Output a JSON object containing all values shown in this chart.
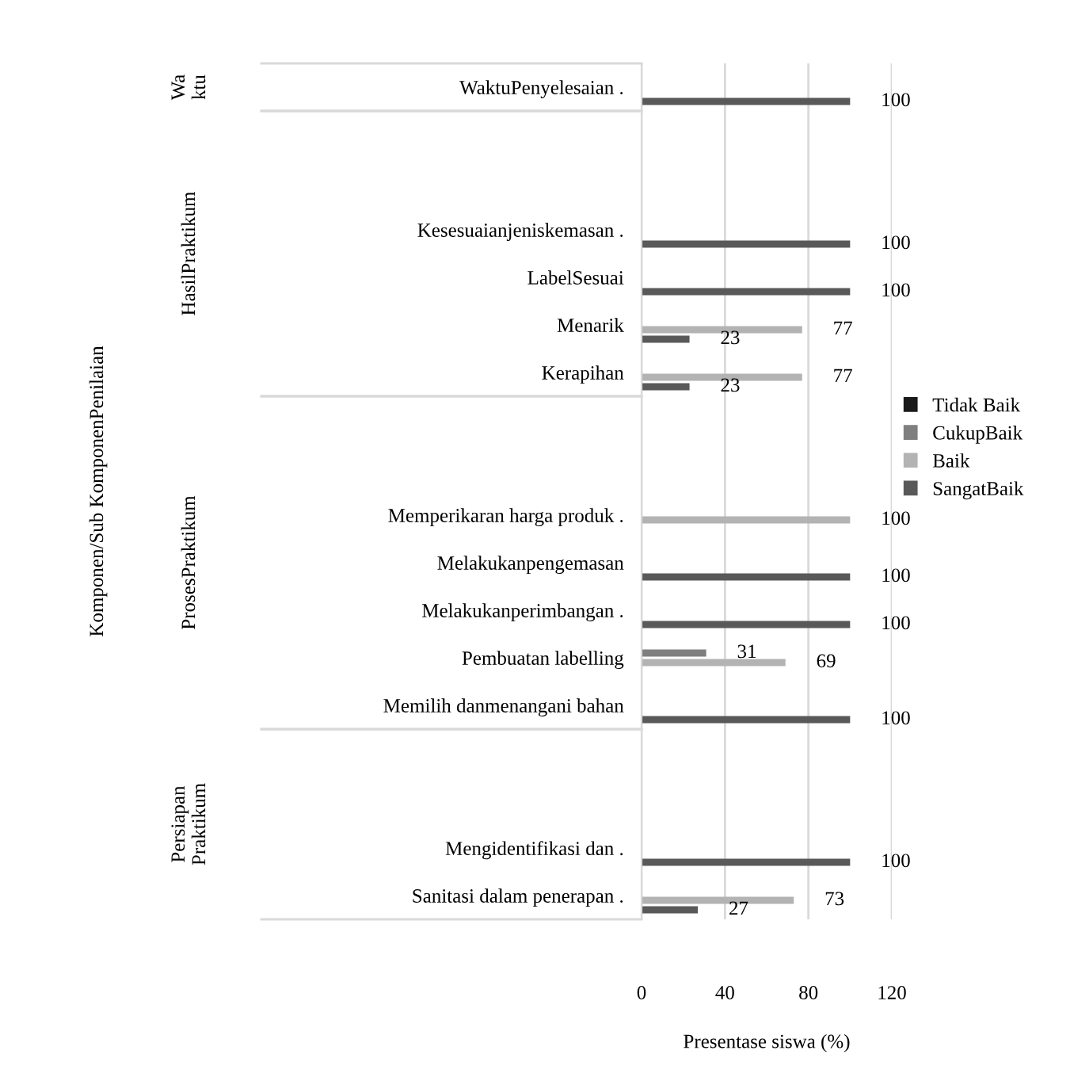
{
  "chart_data": {
    "type": "bar",
    "orientation": "horizontal",
    "categories": [
      "WaktuPenyelesaian .",
      null,
      null,
      "Kesesuaianjeniskemasan .",
      "LabelSesuai",
      "Menarik",
      "Kerapihan",
      null,
      null,
      "Memperikaran harga produk .",
      "Melakukanpengemasan",
      "Melakukanperimbangan .",
      "Pembuatan labelling",
      "Memilih danmenangani bahan",
      null,
      null,
      "Mengidentifikasi dan .",
      "Sanitasi dalam penerapan ."
    ],
    "series": [
      {
        "name": "Tidak Baik",
        "color": "#1a1a1a",
        "values": [
          null,
          null,
          null,
          null,
          null,
          null,
          null,
          null,
          null,
          null,
          null,
          null,
          null,
          null,
          null,
          null,
          null,
          null
        ]
      },
      {
        "name": "CukupBaik",
        "color": "#7f7f7f",
        "values": [
          null,
          null,
          null,
          null,
          null,
          null,
          null,
          null,
          null,
          null,
          null,
          null,
          31,
          null,
          null,
          null,
          null,
          null
        ]
      },
      {
        "name": "Baik",
        "color": "#b3b3b3",
        "values": [
          null,
          null,
          null,
          null,
          null,
          77,
          77,
          null,
          null,
          100,
          null,
          null,
          69,
          null,
          null,
          null,
          null,
          73
        ]
      },
      {
        "name": "SangatBaik",
        "color": "#595959",
        "values": [
          100,
          null,
          null,
          100,
          100,
          23,
          23,
          null,
          null,
          null,
          100,
          100,
          null,
          100,
          null,
          null,
          100,
          27
        ]
      }
    ],
    "annotations": [
      "Wa\nktu",
      "HasilPraktikum",
      "ProsesPraktikum",
      "Persiapan\nPraktikum",
      "Komponen/Sub KomponenPenilaian"
    ],
    "xlabel": "Presentase siswa (%)",
    "xlim": [
      0,
      120
    ],
    "xticks": [
      0,
      40,
      80,
      120
    ],
    "grid": "x",
    "legend": "right",
    "data_labels": true
  }
}
